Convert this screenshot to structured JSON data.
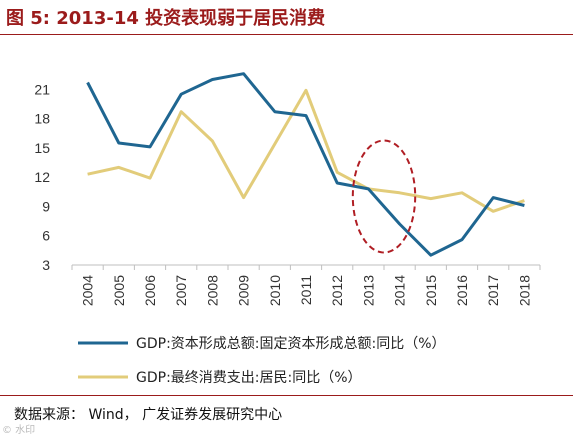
{
  "figure": {
    "title": "图 5:  2013-14 投资表现弱于居民消费",
    "source": "数据来源：  Wind，  广发证券发展研究中心",
    "watermark": "© 水印"
  },
  "colors": {
    "series1": "#1F6691",
    "series2": "#E2CC7A",
    "highlight": "#B01E24",
    "accent": "#9B1B1B"
  },
  "chart_data": {
    "type": "line",
    "title": "",
    "xlabel": "",
    "ylabel": "",
    "categories": [
      "2004",
      "2005",
      "2006",
      "2007",
      "2008",
      "2009",
      "2010",
      "2011",
      "2012",
      "2013",
      "2014",
      "2015",
      "2016",
      "2017",
      "2018"
    ],
    "y_ticks": [
      3,
      6,
      9,
      12,
      15,
      18,
      21
    ],
    "ylim": [
      3,
      24
    ],
    "grid": false,
    "legend_position": "bottom",
    "series": [
      {
        "name": "GDP:资本形成总额:固定资本形成总额:同比（%）",
        "values": [
          21.7,
          15.5,
          15.1,
          20.5,
          22.0,
          22.6,
          18.7,
          18.3,
          11.4,
          10.8,
          7.2,
          4.0,
          5.6,
          9.9,
          9.1
        ]
      },
      {
        "name": "GDP:最终消费支出:居民:同比（%）",
        "values": [
          12.3,
          13.0,
          11.9,
          18.7,
          15.7,
          9.9,
          15.4,
          20.9,
          12.5,
          10.8,
          10.4,
          9.8,
          10.4,
          8.5,
          9.6
        ]
      }
    ],
    "annotation": {
      "type": "ellipse",
      "around_categories": [
        "2013",
        "2014"
      ]
    }
  }
}
